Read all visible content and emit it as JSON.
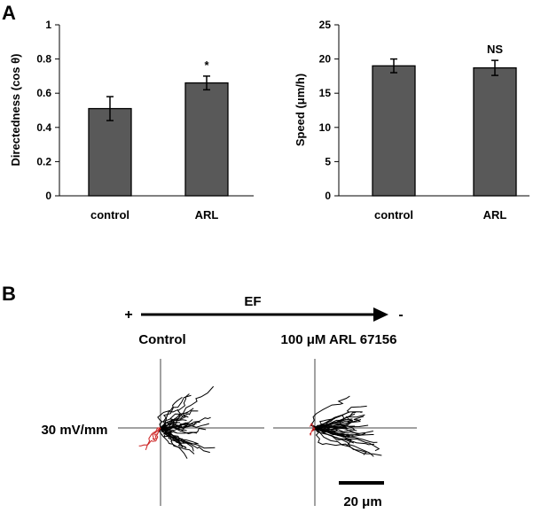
{
  "panel_a": {
    "label": "A"
  },
  "panel_b": {
    "label": "B"
  },
  "chart_data": [
    {
      "type": "bar",
      "categories": [
        "control",
        "ARL"
      ],
      "values": [
        0.51,
        0.66
      ],
      "errors": [
        0.07,
        0.04
      ],
      "annotations": [
        "",
        "*"
      ],
      "xlabel": "",
      "ylabel": "Directedness (cos θ)",
      "ylim": [
        0,
        1
      ],
      "yticks": [
        "0",
        "0.2",
        "0.4",
        "0.6",
        "0.8",
        "1"
      ],
      "bar_color": "#595959"
    },
    {
      "type": "bar",
      "categories": [
        "control",
        "ARL"
      ],
      "values": [
        19.0,
        18.7
      ],
      "errors": [
        1.0,
        1.1
      ],
      "annotations": [
        "",
        "NS"
      ],
      "xlabel": "",
      "ylabel": "Speed (μm/h)",
      "ylim": [
        0,
        25
      ],
      "yticks": [
        "0",
        "5",
        "10",
        "15",
        "20",
        "25"
      ],
      "bar_color": "#595959"
    }
  ],
  "ef_diagram": {
    "plus_label": "+",
    "minus_label": "-",
    "ef_label": "EF",
    "control_label": "Control",
    "treatment_label": "100 μM ARL 67156",
    "field_label": "30 mV/mm",
    "scale_label": "20 μm",
    "track_color": "#000000",
    "reverse_track_color": "#cc1f1f"
  }
}
